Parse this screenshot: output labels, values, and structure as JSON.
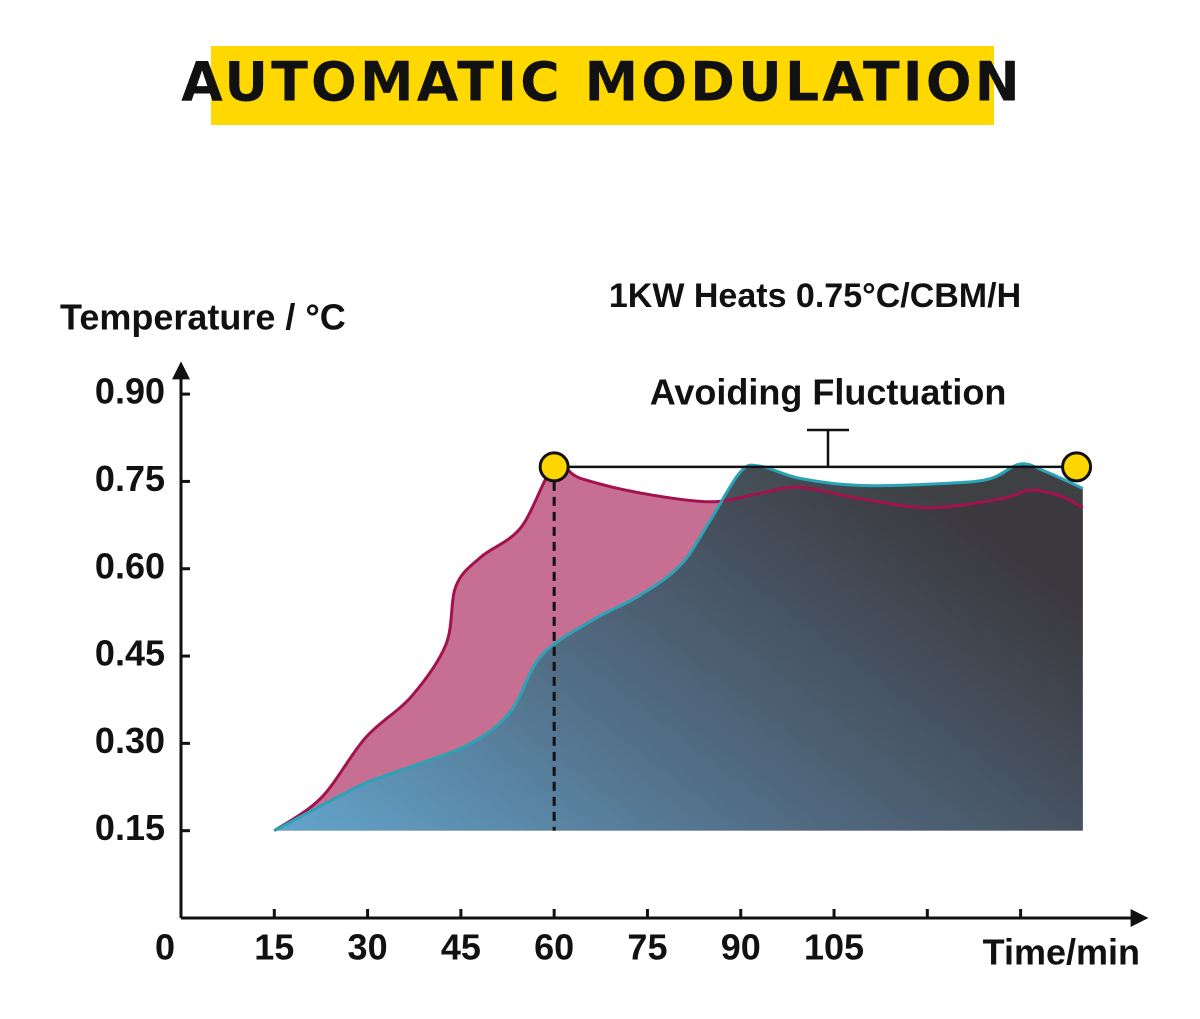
{
  "chart_data": {
    "type": "area",
    "title": "AUTOMATIC MODULATION",
    "subtitle": "1KW Heats 0.75°C/CBM/H",
    "annotation": "Avoiding Fluctuation",
    "y_label": "Temperature / °C",
    "x_label": "Time/min",
    "xlim": [
      0,
      155
    ],
    "ylim": [
      0,
      0.95
    ],
    "xticks": [
      0,
      15,
      30,
      45,
      60,
      75,
      90,
      105
    ],
    "xminor_ticks": [
      120,
      135
    ],
    "yticks": [
      {
        "value": 0.15,
        "label": "0.15"
      },
      {
        "value": 0.3,
        "label": "0.30"
      },
      {
        "value": 0.45,
        "label": "0.45"
      },
      {
        "value": 0.6,
        "label": "0.60"
      },
      {
        "value": 0.75,
        "label": "0.75"
      },
      {
        "value": 0.9,
        "label": "0.90"
      }
    ],
    "markers": {
      "x": [
        60,
        144
      ],
      "y": 0.775,
      "color": "#ffd500"
    },
    "banner_color": "#ffd800",
    "series": [
      {
        "color": "#a3124c",
        "fill": "#c4678c",
        "x": [
          15,
          22.5,
          29.7,
          37,
          42.6,
          44.2,
          48.2,
          54.6,
          60,
          64.3,
          73.9,
          85.2,
          93.2,
          99.6,
          109.3,
          120.5,
          131.8,
          136.6,
          141.4,
          145
        ],
        "values": [
          0.15,
          0.206,
          0.31,
          0.38,
          0.47,
          0.57,
          0.62,
          0.67,
          0.775,
          0.755,
          0.73,
          0.715,
          0.73,
          0.74,
          0.72,
          0.705,
          0.72,
          0.735,
          0.725,
          0.705
        ]
      },
      {
        "color": "#2ba3b6",
        "fill": "gradient",
        "x": [
          15,
          22,
          29.7,
          37,
          46.6,
          53,
          57.9,
          65.9,
          73.9,
          80.4,
          85.2,
          90,
          93.2,
          99.6,
          109.3,
          123.7,
          130.2,
          135,
          139,
          145
        ],
        "values": [
          0.15,
          0.19,
          0.232,
          0.26,
          0.3,
          0.355,
          0.45,
          0.51,
          0.555,
          0.607,
          0.685,
          0.767,
          0.776,
          0.755,
          0.743,
          0.747,
          0.755,
          0.78,
          0.767,
          0.738
        ]
      }
    ]
  }
}
